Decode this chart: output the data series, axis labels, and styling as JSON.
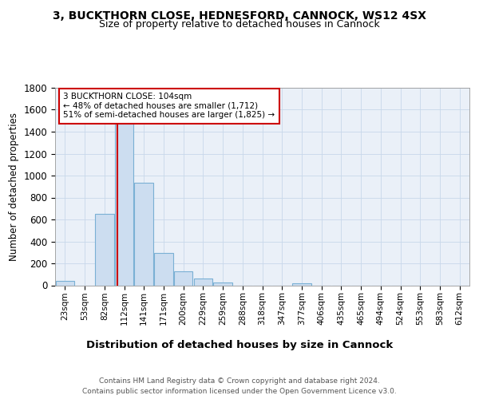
{
  "title1": "3, BUCKTHORN CLOSE, HEDNESFORD, CANNOCK, WS12 4SX",
  "title2": "Size of property relative to detached houses in Cannock",
  "xlabel": "Distribution of detached houses by size in Cannock",
  "ylabel": "Number of detached properties",
  "bar_labels": [
    "23sqm",
    "53sqm",
    "82sqm",
    "112sqm",
    "141sqm",
    "171sqm",
    "200sqm",
    "229sqm",
    "259sqm",
    "288sqm",
    "318sqm",
    "347sqm",
    "377sqm",
    "406sqm",
    "435sqm",
    "465sqm",
    "494sqm",
    "524sqm",
    "553sqm",
    "583sqm",
    "612sqm"
  ],
  "bar_values": [
    40,
    0,
    650,
    1475,
    935,
    295,
    130,
    65,
    25,
    0,
    0,
    0,
    15,
    0,
    0,
    0,
    0,
    0,
    0,
    0,
    0
  ],
  "bar_color": "#ccddf0",
  "bar_edge_color": "#7ab0d4",
  "grid_color": "#c8d8ea",
  "background_color": "#eaf0f8",
  "red_line_x": 2.67,
  "red_line_color": "#cc0000",
  "annotation_text": "3 BUCKTHORN CLOSE: 104sqm\n← 48% of detached houses are smaller (1,712)\n51% of semi-detached houses are larger (1,825) →",
  "annotation_box_color": "#cc0000",
  "ylim": [
    0,
    1800
  ],
  "footer": "Contains HM Land Registry data © Crown copyright and database right 2024.\nContains public sector information licensed under the Open Government Licence v3.0.",
  "title1_fontsize": 10,
  "title2_fontsize": 9,
  "ylabel_fontsize": 8.5,
  "xlabel_fontsize": 9.5,
  "tick_fontsize": 7.5,
  "footer_fontsize": 6.5
}
